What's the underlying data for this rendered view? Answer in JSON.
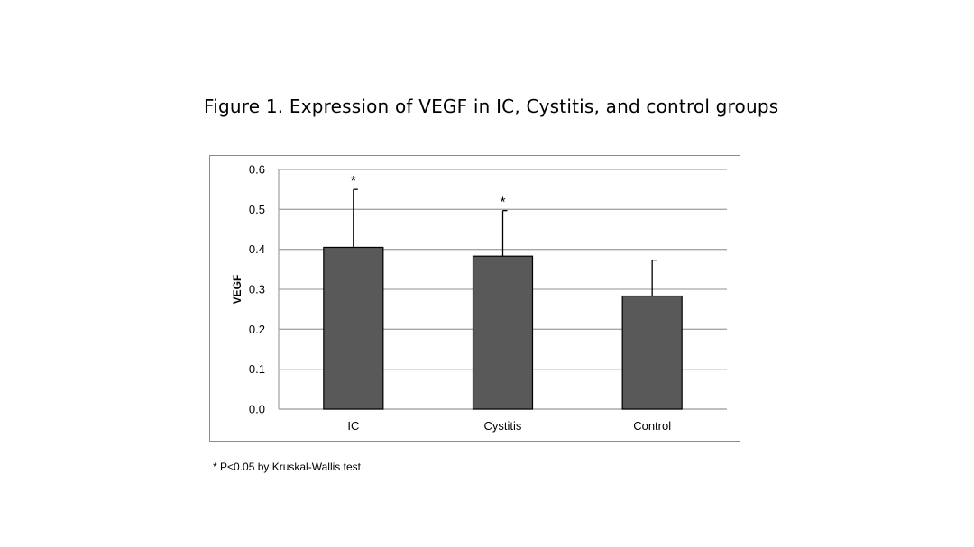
{
  "figure_title": "Figure 1. Expression of VEGF in IC, Cystitis, and control groups",
  "footnote": "* P<0.05 by Kruskal-Wallis test",
  "chart_data": {
    "type": "bar",
    "categories": [
      "IC",
      "Cystitis",
      "Control"
    ],
    "values": [
      0.405,
      0.383,
      0.283
    ],
    "error_upper": [
      0.55,
      0.497,
      0.373
    ],
    "significance": [
      "*",
      "*",
      ""
    ],
    "ylabel": "VEGF",
    "xlabel": "",
    "ylim": [
      0,
      0.6
    ],
    "yticks": [
      "0.0",
      "0.1",
      "0.2",
      "0.3",
      "0.4",
      "0.5",
      "0.6"
    ],
    "grid": true,
    "bar_color": "#595959",
    "grid_color": "#a6a6a6"
  }
}
